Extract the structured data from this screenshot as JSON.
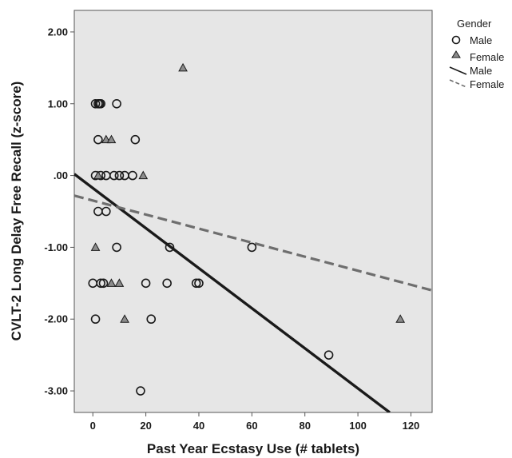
{
  "chart_data": {
    "type": "scatter",
    "xlabel": "Past Year Ecstasy Use (# tablets)",
    "ylabel": "CVLT-2 Long Delay Free Recall (z-score)",
    "xlim": [
      -7,
      128
    ],
    "ylim": [
      -3.3,
      2.3
    ],
    "x_ticks": [
      0,
      20,
      40,
      60,
      80,
      100,
      120
    ],
    "x_tick_labels": [
      "0",
      "20",
      "40",
      "60",
      "80",
      "100",
      "120"
    ],
    "y_ticks": [
      2,
      1,
      0,
      -1,
      -2,
      -3
    ],
    "y_tick_labels": [
      "2.00",
      "1.00",
      ".00",
      "-1.00",
      "-2.00",
      "-3.00"
    ],
    "grid": false,
    "legend_position": "right",
    "legend": {
      "title": "Gender",
      "entries": [
        {
          "label": "Male",
          "symbol": "circle"
        },
        {
          "label": "Female",
          "symbol": "triangle"
        },
        {
          "label": "Male",
          "symbol": "solid-line"
        },
        {
          "label": "Female",
          "symbol": "dashed-line"
        }
      ]
    },
    "colors": {
      "plot_background": "#e6e6e6",
      "marker_stroke": "#1a1a1a",
      "female_marker_fill": "#8c8c8c",
      "male_fit_line": "#1a1a1a",
      "female_fit_line": "#6e6e6e"
    },
    "series": [
      {
        "name": "Male",
        "marker": "circle",
        "points": [
          [
            1,
            1
          ],
          [
            2,
            1
          ],
          [
            2.5,
            1
          ],
          [
            3,
            1
          ],
          [
            9,
            1
          ],
          [
            2,
            0.5
          ],
          [
            16,
            0.5
          ],
          [
            1,
            0
          ],
          [
            3,
            0
          ],
          [
            5,
            0
          ],
          [
            8,
            0
          ],
          [
            10,
            0
          ],
          [
            12,
            0
          ],
          [
            15,
            0
          ],
          [
            2,
            -0.5
          ],
          [
            5,
            -0.5
          ],
          [
            9,
            -1
          ],
          [
            29,
            -1
          ],
          [
            60,
            -1
          ],
          [
            0,
            -1.5
          ],
          [
            3,
            -1.5
          ],
          [
            4,
            -1.5
          ],
          [
            20,
            -1.5
          ],
          [
            28,
            -1.5
          ],
          [
            39,
            -1.5
          ],
          [
            40,
            -1.5
          ],
          [
            1,
            -2
          ],
          [
            22,
            -2
          ],
          [
            89,
            -2.5
          ],
          [
            18,
            -3
          ]
        ]
      },
      {
        "name": "Female",
        "marker": "triangle",
        "points": [
          [
            34,
            1.5
          ],
          [
            5,
            0.5
          ],
          [
            7,
            0.5
          ],
          [
            2,
            0
          ],
          [
            19,
            0
          ],
          [
            1,
            -1
          ],
          [
            7,
            -1.5
          ],
          [
            10,
            -1.5
          ],
          [
            12,
            -2
          ],
          [
            116,
            -2
          ]
        ]
      }
    ],
    "fit_lines": [
      {
        "name": "Male",
        "style": "solid",
        "x": [
          -7,
          112
        ],
        "y": [
          0.02,
          -3.3
        ]
      },
      {
        "name": "Female",
        "style": "dashed",
        "x": [
          -7,
          128
        ],
        "y": [
          -0.28,
          -1.6
        ]
      }
    ]
  }
}
